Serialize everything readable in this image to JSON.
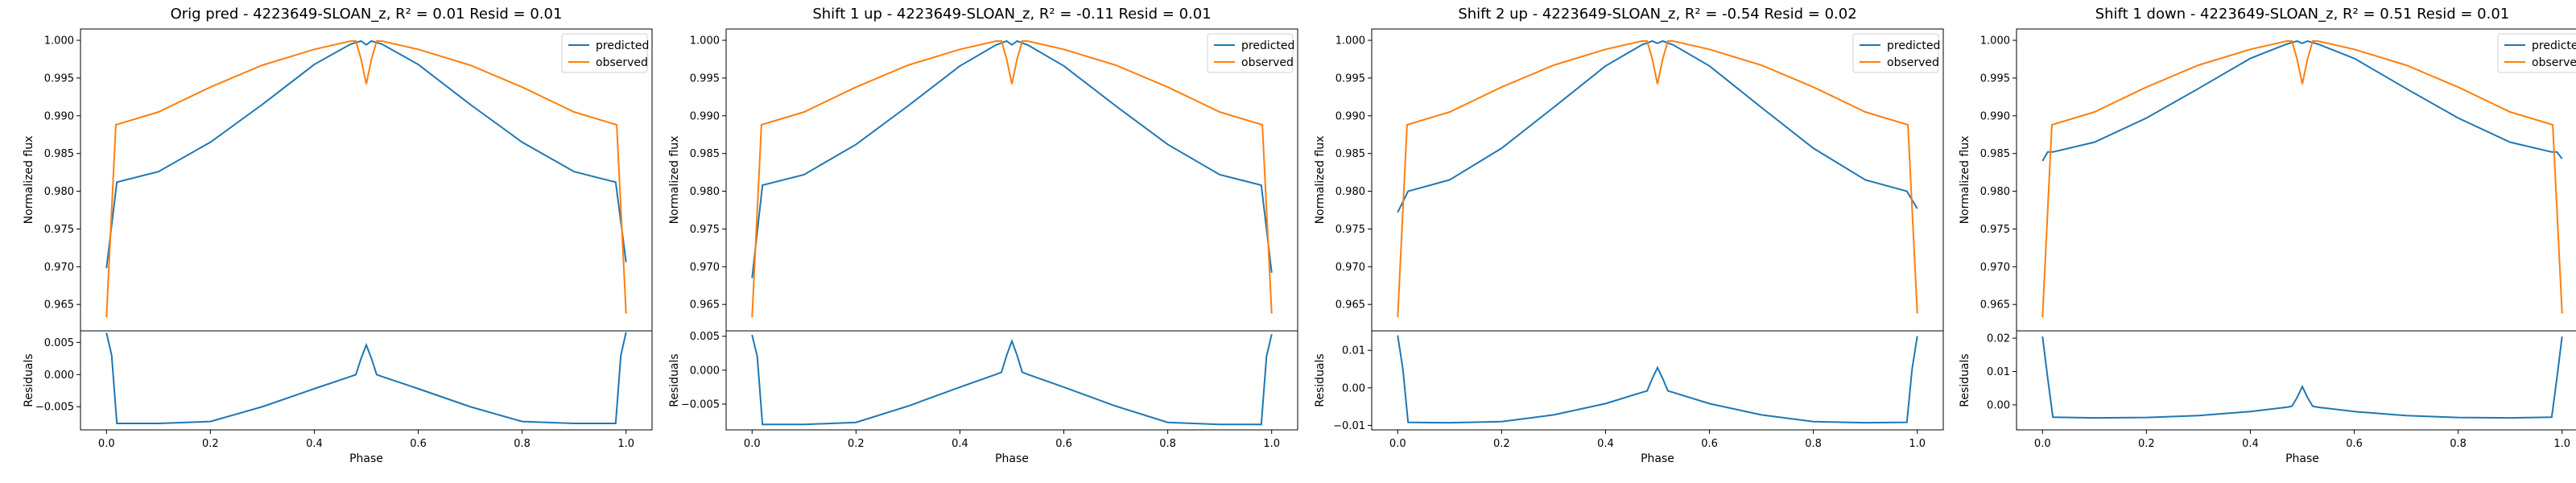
{
  "colors": {
    "predicted": "#1f77b4",
    "observed": "#ff7f0e"
  },
  "chart_data": [
    {
      "type": "line",
      "title": "Orig pred - 4223649-SLOAN_z, R² = 0.01 Resid = 0.01",
      "xlabel": "Phase",
      "ylabel": "Normalized flux",
      "resid_ylabel": "Residuals",
      "legend": {
        "placement": "top-right",
        "entries": [
          "predicted",
          "observed"
        ]
      },
      "xlim": [
        -0.05,
        1.05
      ],
      "xticks": [
        0.0,
        0.2,
        0.4,
        0.6,
        0.8,
        1.0
      ],
      "xtick_labels": [
        "0.0",
        "0.2",
        "0.4",
        "0.6",
        "0.8",
        "1.0"
      ],
      "ylim": [
        0.9615,
        1.0015
      ],
      "yticks": [
        0.965,
        0.97,
        0.975,
        0.98,
        0.985,
        0.99,
        0.995,
        1.0
      ],
      "ytick_labels": [
        "0.965",
        "0.970",
        "0.975",
        "0.980",
        "0.985",
        "0.990",
        "0.995",
        "1.000"
      ],
      "resid_ylim": [
        -0.0086,
        0.0068
      ],
      "resid_yticks": [
        -0.005,
        0.0,
        0.005
      ],
      "resid_ytick_labels": [
        "−0.005",
        "0.000",
        "0.005"
      ],
      "series": [
        {
          "name": "predicted",
          "x": [
            0.0,
            0.02,
            0.1,
            0.2,
            0.3,
            0.4,
            0.47,
            0.49,
            0.5,
            0.51,
            0.53,
            0.6,
            0.7,
            0.8,
            0.9,
            0.98,
            1.0
          ],
          "y": [
            0.9698,
            0.9812,
            0.9826,
            0.9865,
            0.9915,
            0.9968,
            0.9995,
            0.9999,
            0.9994,
            0.9999,
            0.9995,
            0.9968,
            0.9915,
            0.9865,
            0.9826,
            0.9812,
            0.9706
          ]
        },
        {
          "name": "observed",
          "x": [
            0.0,
            0.018,
            0.1,
            0.2,
            0.3,
            0.4,
            0.47,
            0.48,
            0.49,
            0.5,
            0.51,
            0.52,
            0.53,
            0.6,
            0.7,
            0.8,
            0.9,
            0.982,
            1.0
          ],
          "y": [
            0.9633,
            0.9888,
            0.9905,
            0.9938,
            0.9967,
            0.9988,
            0.9999,
            0.9999,
            0.9975,
            0.9942,
            0.9975,
            0.9999,
            0.9999,
            0.9988,
            0.9967,
            0.9938,
            0.9905,
            0.9888,
            0.9638
          ]
        },
        {
          "name": "residuals",
          "x": [
            0.0,
            0.01,
            0.02,
            0.1,
            0.2,
            0.3,
            0.4,
            0.47,
            0.48,
            0.49,
            0.5,
            0.51,
            0.52,
            0.53,
            0.6,
            0.7,
            0.8,
            0.9,
            0.98,
            0.99,
            1.0
          ],
          "y": [
            0.0065,
            0.003,
            -0.0076,
            -0.0076,
            -0.0073,
            -0.005,
            -0.0022,
            -0.0003,
            0.0,
            0.0025,
            0.0046,
            0.0025,
            0.0,
            -0.0003,
            -0.0022,
            -0.005,
            -0.0073,
            -0.0076,
            -0.0076,
            0.003,
            0.0066
          ]
        }
      ]
    },
    {
      "type": "line",
      "title": "Shift 1 up - 4223649-SLOAN_z, R² = -0.11 Resid = 0.01",
      "xlabel": "Phase",
      "ylabel": "Normalized flux",
      "resid_ylabel": "Residuals",
      "legend": {
        "placement": "top-right",
        "entries": [
          "predicted",
          "observed"
        ]
      },
      "xlim": [
        -0.05,
        1.05
      ],
      "xticks": [
        0.0,
        0.2,
        0.4,
        0.6,
        0.8,
        1.0
      ],
      "xtick_labels": [
        "0.0",
        "0.2",
        "0.4",
        "0.6",
        "0.8",
        "1.0"
      ],
      "ylim": [
        0.9615,
        1.0015
      ],
      "yticks": [
        0.965,
        0.97,
        0.975,
        0.98,
        0.985,
        0.99,
        0.995,
        1.0
      ],
      "ytick_labels": [
        "0.965",
        "0.970",
        "0.975",
        "0.980",
        "0.985",
        "0.990",
        "0.995",
        "1.000"
      ],
      "resid_ylim": [
        -0.0088,
        0.0058
      ],
      "resid_yticks": [
        -0.005,
        0.0,
        0.005
      ],
      "resid_ytick_labels": [
        "−0.005",
        "0.000",
        "0.005"
      ],
      "series": [
        {
          "name": "predicted",
          "x": [
            0.0,
            0.02,
            0.1,
            0.2,
            0.3,
            0.4,
            0.47,
            0.49,
            0.5,
            0.51,
            0.53,
            0.6,
            0.7,
            0.8,
            0.9,
            0.98,
            1.0
          ],
          "y": [
            0.9685,
            0.9808,
            0.9822,
            0.9862,
            0.9913,
            0.9966,
            0.9994,
            0.9999,
            0.9994,
            0.9999,
            0.9994,
            0.9966,
            0.9913,
            0.9862,
            0.9822,
            0.9808,
            0.9692
          ]
        },
        {
          "name": "observed",
          "x": [
            0.0,
            0.018,
            0.1,
            0.2,
            0.3,
            0.4,
            0.47,
            0.48,
            0.49,
            0.5,
            0.51,
            0.52,
            0.53,
            0.6,
            0.7,
            0.8,
            0.9,
            0.982,
            1.0
          ],
          "y": [
            0.9633,
            0.9888,
            0.9905,
            0.9938,
            0.9967,
            0.9988,
            0.9999,
            0.9999,
            0.9975,
            0.9942,
            0.9975,
            0.9999,
            0.9999,
            0.9988,
            0.9967,
            0.9938,
            0.9905,
            0.9888,
            0.9638
          ]
        },
        {
          "name": "residuals",
          "x": [
            0.0,
            0.01,
            0.02,
            0.1,
            0.2,
            0.3,
            0.4,
            0.47,
            0.48,
            0.49,
            0.5,
            0.51,
            0.52,
            0.53,
            0.6,
            0.7,
            0.8,
            0.9,
            0.98,
            0.99,
            1.0
          ],
          "y": [
            0.0052,
            0.002,
            -0.008,
            -0.008,
            -0.0077,
            -0.0053,
            -0.0025,
            -0.0006,
            -0.0003,
            0.0022,
            0.0043,
            0.0022,
            -0.0003,
            -0.0006,
            -0.0025,
            -0.0053,
            -0.0077,
            -0.008,
            -0.008,
            0.002,
            0.0053
          ]
        }
      ]
    },
    {
      "type": "line",
      "title": "Shift 2 up - 4223649-SLOAN_z, R² = -0.54 Resid = 0.02",
      "xlabel": "Phase",
      "ylabel": "Normalized flux",
      "resid_ylabel": "Residuals",
      "legend": {
        "placement": "top-right",
        "entries": [
          "predicted",
          "observed"
        ]
      },
      "xlim": [
        -0.05,
        1.05
      ],
      "xticks": [
        0.0,
        0.2,
        0.4,
        0.6,
        0.8,
        1.0
      ],
      "xtick_labels": [
        "0.0",
        "0.2",
        "0.4",
        "0.6",
        "0.8",
        "1.0"
      ],
      "ylim": [
        0.9615,
        1.0015
      ],
      "yticks": [
        0.965,
        0.97,
        0.975,
        0.98,
        0.985,
        0.99,
        0.995,
        1.0
      ],
      "ytick_labels": [
        "0.965",
        "0.970",
        "0.975",
        "0.980",
        "0.985",
        "0.990",
        "0.995",
        "1.000"
      ],
      "resid_ylim": [
        -0.0112,
        0.0152
      ],
      "resid_yticks": [
        -0.01,
        0.0,
        0.01
      ],
      "resid_ytick_labels": [
        "−0.01",
        "0.00",
        "0.01"
      ],
      "series": [
        {
          "name": "predicted",
          "x": [
            0.0,
            0.02,
            0.1,
            0.2,
            0.3,
            0.4,
            0.47,
            0.49,
            0.5,
            0.51,
            0.53,
            0.6,
            0.7,
            0.8,
            0.9,
            0.98,
            1.0
          ],
          "y": [
            0.9772,
            0.98,
            0.9815,
            0.9857,
            0.9911,
            0.9966,
            0.9994,
            0.9999,
            0.9996,
            0.9999,
            0.9994,
            0.9966,
            0.9911,
            0.9857,
            0.9815,
            0.98,
            0.9777
          ]
        },
        {
          "name": "observed",
          "x": [
            0.0,
            0.018,
            0.1,
            0.2,
            0.3,
            0.4,
            0.47,
            0.48,
            0.49,
            0.5,
            0.51,
            0.52,
            0.53,
            0.6,
            0.7,
            0.8,
            0.9,
            0.982,
            1.0
          ],
          "y": [
            0.9633,
            0.9888,
            0.9905,
            0.9938,
            0.9967,
            0.9988,
            0.9999,
            0.9999,
            0.9975,
            0.9942,
            0.9975,
            0.9999,
            0.9999,
            0.9988,
            0.9967,
            0.9938,
            0.9905,
            0.9888,
            0.9638
          ]
        },
        {
          "name": "residuals",
          "x": [
            0.0,
            0.01,
            0.02,
            0.1,
            0.2,
            0.3,
            0.4,
            0.47,
            0.48,
            0.49,
            0.5,
            0.51,
            0.52,
            0.53,
            0.6,
            0.7,
            0.8,
            0.9,
            0.98,
            0.99,
            1.0
          ],
          "y": [
            0.014,
            0.005,
            -0.0092,
            -0.0093,
            -0.009,
            -0.0072,
            -0.0042,
            -0.0012,
            -0.0008,
            0.0025,
            0.0054,
            0.0025,
            -0.0008,
            -0.0012,
            -0.0042,
            -0.0072,
            -0.009,
            -0.0093,
            -0.0092,
            0.005,
            0.0138
          ]
        }
      ]
    },
    {
      "type": "line",
      "title": "Shift 1 down - 4223649-SLOAN_z, R² = 0.51 Resid = 0.01",
      "xlabel": "Phase",
      "ylabel": "Normalized flux",
      "resid_ylabel": "Residuals",
      "legend": {
        "placement": "top-right",
        "entries": [
          "predicted",
          "observed"
        ]
      },
      "xlim": [
        -0.05,
        1.05
      ],
      "xticks": [
        0.0,
        0.2,
        0.4,
        0.6,
        0.8,
        1.0
      ],
      "xtick_labels": [
        "0.0",
        "0.2",
        "0.4",
        "0.6",
        "0.8",
        "1.0"
      ],
      "ylim": [
        0.9615,
        1.0015
      ],
      "yticks": [
        0.965,
        0.97,
        0.975,
        0.98,
        0.985,
        0.99,
        0.995,
        1.0
      ],
      "ytick_labels": [
        "0.965",
        "0.970",
        "0.975",
        "0.980",
        "0.985",
        "0.990",
        "0.995",
        "1.000"
      ],
      "resid_ylim": [
        -0.0075,
        0.0222
      ],
      "resid_yticks": [
        0.0,
        0.01,
        0.02
      ],
      "resid_ytick_labels": [
        "0.00",
        "0.01",
        "0.02"
      ],
      "series": [
        {
          "name": "predicted",
          "x": [
            0.0,
            0.01,
            0.02,
            0.1,
            0.2,
            0.3,
            0.4,
            0.47,
            0.49,
            0.5,
            0.51,
            0.53,
            0.6,
            0.7,
            0.8,
            0.9,
            0.98,
            0.99,
            1.0
          ],
          "y": [
            0.984,
            0.9852,
            0.9852,
            0.9865,
            0.9897,
            0.9936,
            0.9976,
            0.9995,
            0.9999,
            0.9996,
            0.9999,
            0.9995,
            0.9976,
            0.9936,
            0.9897,
            0.9865,
            0.9852,
            0.9852,
            0.9843
          ]
        },
        {
          "name": "observed",
          "x": [
            0.0,
            0.018,
            0.1,
            0.2,
            0.3,
            0.4,
            0.47,
            0.48,
            0.49,
            0.5,
            0.51,
            0.52,
            0.53,
            0.6,
            0.7,
            0.8,
            0.9,
            0.982,
            1.0
          ],
          "y": [
            0.9633,
            0.9888,
            0.9905,
            0.9938,
            0.9967,
            0.9988,
            0.9999,
            0.9999,
            0.9975,
            0.9942,
            0.9975,
            0.9999,
            0.9999,
            0.9988,
            0.9967,
            0.9938,
            0.9905,
            0.9888,
            0.9638
          ]
        },
        {
          "name": "residuals",
          "x": [
            0.0,
            0.01,
            0.02,
            0.1,
            0.2,
            0.3,
            0.4,
            0.47,
            0.48,
            0.49,
            0.5,
            0.51,
            0.52,
            0.53,
            0.6,
            0.7,
            0.8,
            0.9,
            0.98,
            0.99,
            1.0
          ],
          "y": [
            0.0205,
            0.008,
            -0.0037,
            -0.0039,
            -0.0038,
            -0.0032,
            -0.002,
            -0.0007,
            -0.0004,
            0.0022,
            0.0055,
            0.0022,
            -0.0004,
            -0.0007,
            -0.002,
            -0.0032,
            -0.0038,
            -0.0039,
            -0.0037,
            0.008,
            0.0205
          ]
        }
      ]
    }
  ]
}
